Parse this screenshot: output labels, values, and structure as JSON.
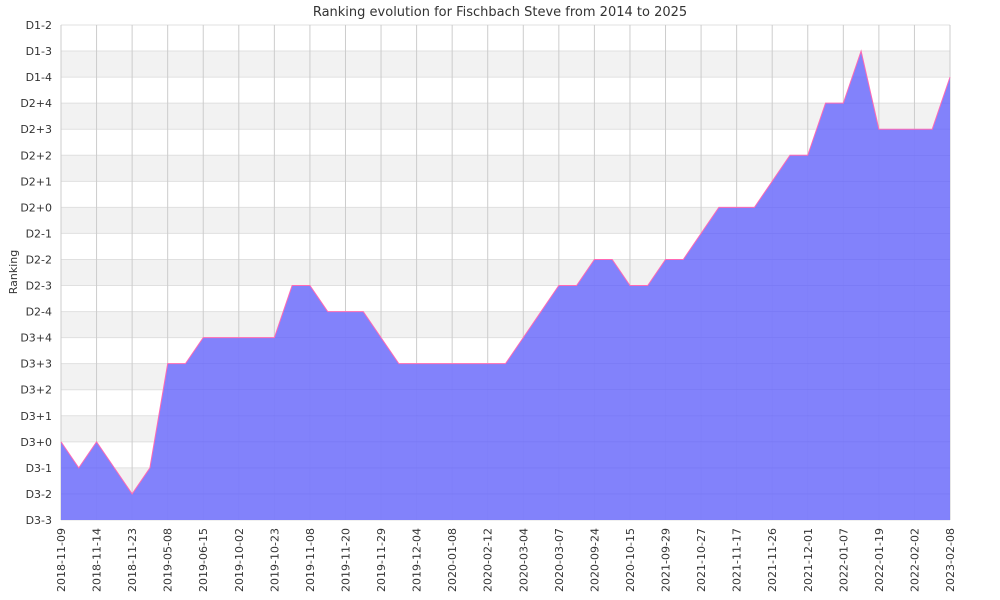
{
  "chart_data": {
    "type": "area",
    "title": "Ranking evolution for Fischbach Steve from 2014 to 2025",
    "ylabel": "Ranking",
    "xlabel": "",
    "y_categories": [
      "D3-3",
      "D3-2",
      "D3-1",
      "D3+0",
      "D3+1",
      "D3+2",
      "D3+3",
      "D3+4",
      "D2-4",
      "D2-3",
      "D2-2",
      "D2-1",
      "D2+0",
      "D2+1",
      "D2+2",
      "D2+3",
      "D2+4",
      "D1-4",
      "D1-3",
      "D1-2"
    ],
    "x_tick_labels": [
      "2018-11-09",
      "2018-11-14",
      "2018-11-23",
      "2019-05-08",
      "2019-06-15",
      "2019-10-02",
      "2019-10-23",
      "2019-11-08",
      "2019-11-20",
      "2019-11-29",
      "2019-12-04",
      "2020-01-08",
      "2020-02-12",
      "2020-03-04",
      "2020-03-07",
      "2020-09-24",
      "2020-10-15",
      "2021-09-29",
      "2021-10-27",
      "2021-11-17",
      "2021-11-26",
      "2021-12-01",
      "2022-01-07",
      "2022-01-19",
      "2022-02-02",
      "2023-02-08"
    ],
    "series": [
      {
        "values": [
          "D3+0",
          "D3-1",
          "D3+0",
          "D3-1",
          "D3-2",
          "D3-1",
          "D3+3",
          "D3+3",
          "D3+4",
          "D3+4",
          "D3+4",
          "D3+4",
          "D3+4",
          "D2-3",
          "D2-3",
          "D2-4",
          "D2-4",
          "D2-4",
          "D3+4",
          "D3+3",
          "D3+3",
          "D3+3",
          "D3+3",
          "D3+3",
          "D3+3",
          "D3+3",
          "D3+4",
          "D2-4",
          "D2-3",
          "D2-3",
          "D2-2",
          "D2-2",
          "D2-3",
          "D2-3",
          "D2-2",
          "D2-2",
          "D2-1",
          "D2+0",
          "D2+0",
          "D2+0",
          "D2+1",
          "D2+2",
          "D2+2",
          "D2+4",
          "D2+4",
          "D1-3",
          "D2+3",
          "D2+3",
          "D2+3",
          "D2+3",
          "D1-4"
        ]
      }
    ],
    "colors": {
      "fill": "#7b7bfb",
      "line": "#ff69b4",
      "grid": "#cccccc",
      "band": "#f2f2f2"
    },
    "grid": true
  }
}
